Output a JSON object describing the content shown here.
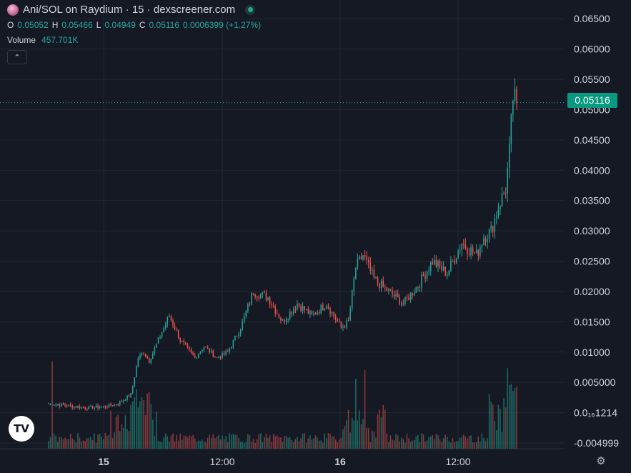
{
  "header": {
    "title": "Ani/SOL on Raydium · 15 · dexscreener.com",
    "o_label": "O",
    "o_value": "0.05052",
    "h_label": "H",
    "h_value": "0.05466",
    "l_label": "L",
    "l_value": "0.04949",
    "c_label": "C",
    "c_value": "0.05116",
    "change": "0.0006399 (+1.27%)",
    "volume_label": "Volume",
    "volume_value": "457.701K",
    "collapse_icon": "chevron-up-icon"
  },
  "price_badge": "0.05116",
  "logo": "TV",
  "colors": {
    "background": "#151924",
    "grid": "#242833",
    "up": "#26a69a",
    "down": "#ef5350",
    "up_volume": "#1d6b62",
    "down_volume": "#8a3a3c",
    "badge": "#089981"
  },
  "chart_data": {
    "type": "candlestick",
    "y_axis_ticks": [
      "0.06500",
      "0.06000",
      "0.05500",
      "0.05000",
      "0.04500",
      "0.04000",
      "0.03500",
      "0.03000",
      "0.02500",
      "0.02000",
      "0.01500",
      "0.01000",
      "0.005000",
      "0.0₁₆1214",
      "-0.004999"
    ],
    "x_axis_ticks": [
      "15",
      "12:00",
      "16",
      "12:00"
    ],
    "ylim": [
      -0.005,
      0.0655
    ],
    "last_price": 0.05116,
    "grid": true,
    "price_keypoints": [
      [
        0,
        0.0015
      ],
      [
        10,
        0.0012
      ],
      [
        20,
        0.0008
      ],
      [
        30,
        0.001
      ],
      [
        38,
        0.0015
      ],
      [
        45,
        0.003
      ],
      [
        49,
        0.009
      ],
      [
        52,
        0.01
      ],
      [
        55,
        0.0085
      ],
      [
        60,
        0.012
      ],
      [
        66,
        0.016
      ],
      [
        72,
        0.012
      ],
      [
        80,
        0.009
      ],
      [
        85,
        0.011
      ],
      [
        92,
        0.009
      ],
      [
        98,
        0.01
      ],
      [
        105,
        0.014
      ],
      [
        112,
        0.02
      ],
      [
        120,
        0.019
      ],
      [
        128,
        0.015
      ],
      [
        136,
        0.018
      ],
      [
        144,
        0.016
      ],
      [
        152,
        0.018
      ],
      [
        160,
        0.014
      ],
      [
        164,
        0.015
      ],
      [
        168,
        0.024
      ],
      [
        172,
        0.026
      ],
      [
        178,
        0.022
      ],
      [
        186,
        0.02
      ],
      [
        194,
        0.018
      ],
      [
        202,
        0.021
      ],
      [
        210,
        0.025
      ],
      [
        218,
        0.023
      ],
      [
        226,
        0.028
      ],
      [
        234,
        0.026
      ],
      [
        238,
        0.029
      ],
      [
        242,
        0.03
      ],
      [
        246,
        0.034
      ],
      [
        250,
        0.037
      ],
      [
        252,
        0.043
      ],
      [
        254,
        0.052
      ],
      [
        256,
        0.05116
      ]
    ],
    "candle_count": 257
  }
}
